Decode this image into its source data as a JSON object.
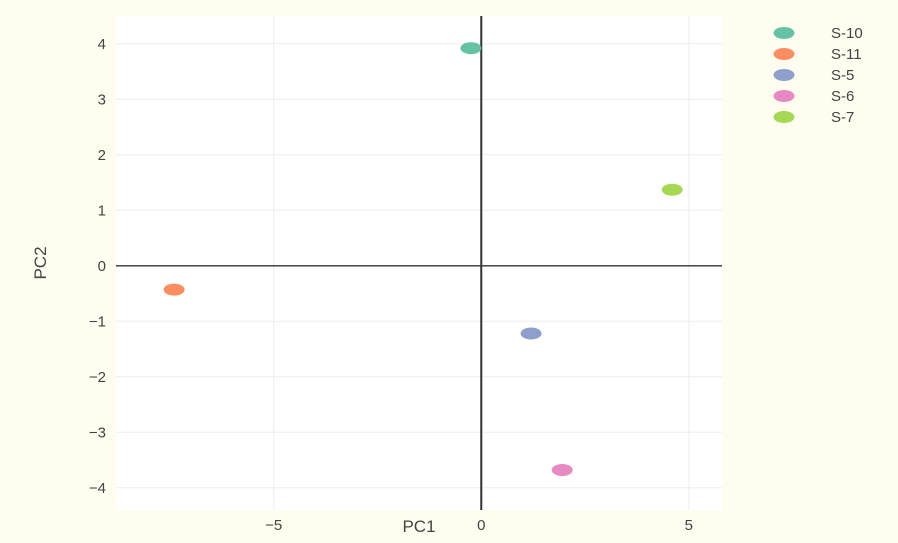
{
  "chart_data": {
    "type": "scatter",
    "xlabel": "PC1",
    "ylabel": "PC2",
    "xlim": [
      -8.8,
      5.8
    ],
    "ylim": [
      -4.4,
      4.5
    ],
    "xticks": [
      -5,
      0,
      5
    ],
    "yticks": [
      -4,
      -3,
      -2,
      -1,
      0,
      1,
      2,
      3,
      4
    ],
    "grid": true,
    "legend_position": "top-right",
    "series": [
      {
        "name": "S-10",
        "color": "#66c2a5",
        "x": [
          -0.25
        ],
        "y": [
          3.92
        ]
      },
      {
        "name": "S-11",
        "color": "#fc8d62",
        "x": [
          -7.4
        ],
        "y": [
          -0.43
        ]
      },
      {
        "name": "S-5",
        "color": "#8da0cb",
        "x": [
          1.2
        ],
        "y": [
          -1.22
        ]
      },
      {
        "name": "S-6",
        "color": "#e78ac3",
        "x": [
          1.95
        ],
        "y": [
          -3.68
        ]
      },
      {
        "name": "S-7",
        "color": "#a6d854",
        "x": [
          4.6
        ],
        "y": [
          1.37
        ]
      }
    ]
  }
}
